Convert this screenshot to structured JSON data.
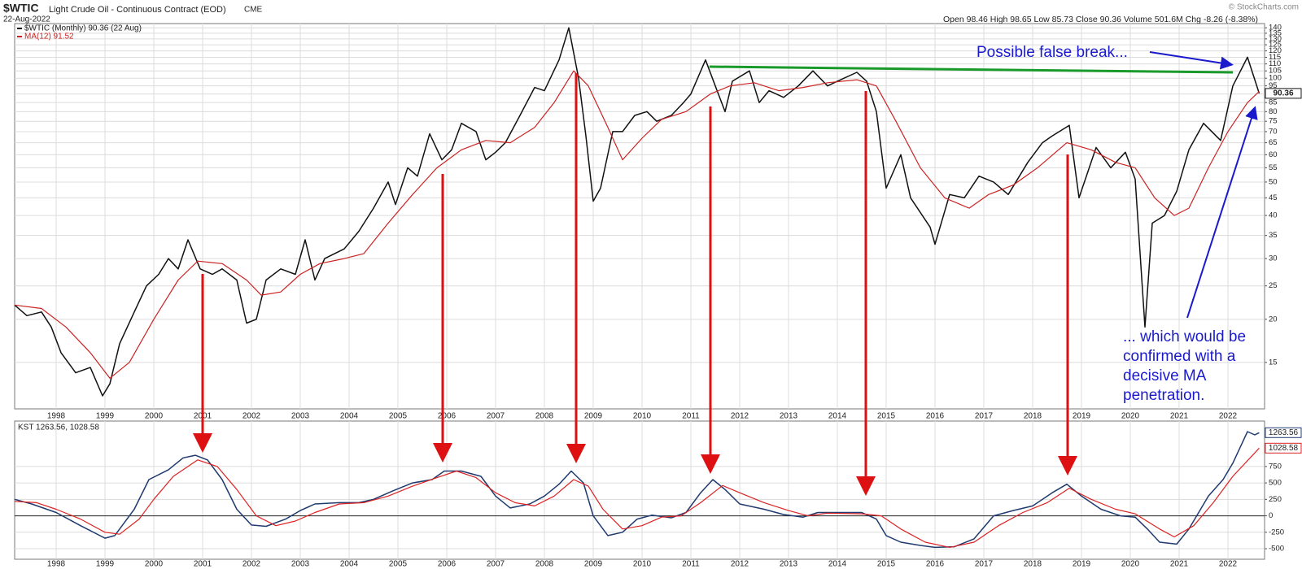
{
  "header": {
    "symbol": "$WTIC",
    "name": "Light Crude Oil - Continuous Contract (EOD)",
    "exchange": "CME",
    "date": "22-Aug-2022",
    "quote": "Open 98.46 High 98.65 Low 85.73 Close 90.36 Volume 501.6M Chg -8.26 (-8.38%)",
    "credit": "© StockCharts.com"
  },
  "chart_data": [
    {
      "type": "line",
      "log_scale": true,
      "grid": true,
      "xlim": [
        1997.15,
        2022.75
      ],
      "xticks": [
        1998,
        1999,
        2000,
        2001,
        2002,
        2003,
        2004,
        2005,
        2006,
        2007,
        2008,
        2009,
        2010,
        2011,
        2012,
        2013,
        2014,
        2015,
        2016,
        2017,
        2018,
        2019,
        2020,
        2021,
        2022
      ],
      "ylim": [
        11,
        144
      ],
      "yticks": [
        15,
        20,
        25,
        30,
        35,
        40,
        45,
        50,
        55,
        60,
        65,
        70,
        75,
        80,
        85,
        90,
        95,
        100,
        105,
        110,
        115,
        120,
        125,
        130,
        135,
        140
      ],
      "series": [
        {
          "name": "$WTIC (Monthly) 90.36 (22 Aug)",
          "color": "#111111",
          "last_value_box": true,
          "x": [
            1997.15,
            1997.4,
            1997.7,
            1997.9,
            1998.1,
            1998.4,
            1998.7,
            1998.95,
            1999.1,
            1999.3,
            1999.6,
            1999.85,
            2000.1,
            2000.3,
            2000.5,
            2000.7,
            2000.95,
            2001.2,
            2001.4,
            2001.7,
            2001.9,
            2002.1,
            2002.3,
            2002.6,
            2002.9,
            2003.1,
            2003.3,
            2003.5,
            2003.9,
            2004.2,
            2004.5,
            2004.8,
            2004.95,
            2005.2,
            2005.4,
            2005.65,
            2005.9,
            2006.1,
            2006.3,
            2006.6,
            2006.8,
            2007.0,
            2007.2,
            2007.5,
            2007.8,
            2008.0,
            2008.3,
            2008.5,
            2008.7,
            2008.85,
            2009.0,
            2009.15,
            2009.4,
            2009.6,
            2009.85,
            2010.1,
            2010.3,
            2010.6,
            2010.85,
            2011.0,
            2011.3,
            2011.5,
            2011.7,
            2011.85,
            2012.2,
            2012.4,
            2012.6,
            2012.9,
            2013.2,
            2013.5,
            2013.8,
            2014.0,
            2014.4,
            2014.6,
            2014.8,
            2015.0,
            2015.3,
            2015.5,
            2015.9,
            2016.0,
            2016.3,
            2016.6,
            2016.9,
            2017.2,
            2017.5,
            2017.9,
            2018.2,
            2018.4,
            2018.75,
            2018.95,
            2019.3,
            2019.6,
            2019.9,
            2020.1,
            2020.3,
            2020.45,
            2020.7,
            2020.95,
            2021.2,
            2021.5,
            2021.85,
            2022.1,
            2022.4,
            2022.64
          ],
          "values": [
            22,
            20.5,
            21,
            19,
            16,
            14,
            14.5,
            12,
            13,
            17,
            21,
            25,
            27,
            30,
            28,
            34,
            28,
            27,
            28,
            26,
            19.5,
            20,
            26,
            28,
            27,
            34,
            26,
            30,
            32,
            36,
            42,
            50,
            43,
            55,
            52,
            69,
            58,
            62,
            74,
            70,
            58,
            61,
            65,
            78,
            94,
            92,
            113,
            140,
            100,
            68,
            44,
            48,
            70,
            70,
            78,
            80,
            75,
            78,
            85,
            90,
            113,
            95,
            80,
            98,
            105,
            85,
            92,
            88,
            95,
            105,
            95,
            98,
            104,
            98,
            80,
            48,
            60,
            45,
            37,
            33,
            46,
            45,
            52,
            50,
            46,
            57,
            65,
            68,
            73,
            45,
            63,
            55,
            61,
            51,
            19,
            38,
            40,
            47,
            62,
            74,
            66,
            95,
            115,
            90.36
          ]
        },
        {
          "name": "MA(12) 91.52",
          "color": "#cc2222",
          "x": [
            1997.15,
            1997.7,
            1998.2,
            1998.7,
            1999.1,
            1999.5,
            2000.0,
            2000.5,
            2000.9,
            2001.4,
            2001.9,
            2002.2,
            2002.6,
            2003.0,
            2003.4,
            2003.9,
            2004.3,
            2004.8,
            2005.3,
            2005.8,
            2006.3,
            2006.8,
            2007.3,
            2007.8,
            2008.2,
            2008.6,
            2008.9,
            2009.3,
            2009.6,
            2010.0,
            2010.4,
            2010.9,
            2011.4,
            2011.8,
            2012.3,
            2012.8,
            2013.3,
            2013.8,
            2014.4,
            2014.8,
            2015.2,
            2015.7,
            2016.2,
            2016.7,
            2017.1,
            2017.6,
            2018.1,
            2018.7,
            2019.2,
            2019.7,
            2020.1,
            2020.5,
            2020.9,
            2021.2,
            2021.6,
            2022.0,
            2022.4,
            2022.64
          ],
          "values": [
            22,
            21.5,
            19,
            16,
            13.5,
            15,
            20,
            26,
            29.5,
            29,
            26,
            23.5,
            24,
            27,
            29,
            30,
            31,
            38,
            46,
            55,
            62,
            66,
            65,
            72,
            85,
            105,
            95,
            72,
            58,
            67,
            76,
            80,
            90,
            95,
            97,
            92,
            94,
            97,
            99,
            95,
            75,
            55,
            45,
            42,
            46,
            49,
            55,
            65,
            62,
            57,
            55,
            45,
            40,
            42,
            55,
            70,
            85,
            91.52
          ]
        }
      ],
      "trendline": {
        "color": "#1a9a2a",
        "x": [
          2011.38,
          2022.1
        ],
        "values": [
          108,
          104
        ]
      },
      "annotations": [
        "Possible false break...",
        "... which would be",
        "confirmed with a",
        "decisive MA",
        "penetration."
      ]
    },
    {
      "type": "line",
      "grid": true,
      "zero_line": true,
      "label": "KST 1263.56, 1028.58",
      "xlim": [
        1997.15,
        2022.75
      ],
      "xticks": [
        1998,
        1999,
        2000,
        2001,
        2002,
        2003,
        2004,
        2005,
        2006,
        2007,
        2008,
        2009,
        2010,
        2011,
        2012,
        2013,
        2014,
        2015,
        2016,
        2017,
        2018,
        2019,
        2020,
        2021,
        2022
      ],
      "ylim": [
        -660,
        1440
      ],
      "yticks": [
        -500,
        -250,
        0,
        250,
        500,
        750
      ],
      "series": [
        {
          "color": "#1f3a6e",
          "last_value_box": true,
          "x": [
            1997.15,
            1997.5,
            1998.0,
            1998.5,
            1999.0,
            1999.2,
            1999.6,
            1999.9,
            2000.3,
            2000.6,
            2000.85,
            2001.1,
            2001.4,
            2001.7,
            2002.0,
            2002.3,
            2002.7,
            2003.0,
            2003.3,
            2003.8,
            2004.2,
            2004.5,
            2004.9,
            2005.3,
            2005.7,
            2005.95,
            2006.3,
            2006.7,
            2007.0,
            2007.3,
            2007.7,
            2008.0,
            2008.3,
            2008.55,
            2008.8,
            2009.0,
            2009.3,
            2009.6,
            2009.9,
            2010.2,
            2010.6,
            2010.9,
            2011.2,
            2011.45,
            2011.7,
            2012.0,
            2012.5,
            2012.9,
            2013.3,
            2013.6,
            2014.0,
            2014.5,
            2014.8,
            2015.0,
            2015.3,
            2015.7,
            2016.0,
            2016.4,
            2016.8,
            2017.2,
            2017.6,
            2018.0,
            2018.4,
            2018.7,
            2019.0,
            2019.4,
            2019.8,
            2020.1,
            2020.35,
            2020.6,
            2020.95,
            2021.2,
            2021.6,
            2021.9,
            2022.1,
            2022.4,
            2022.55,
            2022.64
          ],
          "values": [
            250,
            180,
            50,
            -150,
            -340,
            -300,
            100,
            550,
            700,
            880,
            920,
            850,
            550,
            100,
            -140,
            -160,
            -50,
            80,
            180,
            200,
            200,
            250,
            380,
            500,
            550,
            680,
            680,
            600,
            300,
            120,
            180,
            300,
            480,
            680,
            500,
            0,
            -300,
            -250,
            -50,
            10,
            -30,
            50,
            350,
            550,
            400,
            180,
            100,
            20,
            -20,
            50,
            50,
            50,
            -50,
            -300,
            -400,
            -450,
            -480,
            -470,
            -350,
            0,
            80,
            150,
            350,
            480,
            300,
            100,
            0,
            -20,
            -200,
            -400,
            -430,
            -200,
            300,
            550,
            800,
            1280,
            1230,
            1263.56
          ]
        },
        {
          "color": "#dd2222",
          "last_value_box": true,
          "x": [
            1997.15,
            1997.6,
            1998.0,
            1998.5,
            1999.0,
            1999.3,
            1999.7,
            2000.0,
            2000.4,
            2000.9,
            2001.3,
            2001.7,
            2002.1,
            2002.5,
            2002.9,
            2003.3,
            2003.8,
            2004.3,
            2004.8,
            2005.3,
            2005.8,
            2006.2,
            2006.6,
            2007.0,
            2007.4,
            2007.8,
            2008.2,
            2008.6,
            2008.9,
            2009.2,
            2009.6,
            2010.0,
            2010.4,
            2010.8,
            2011.2,
            2011.65,
            2012.0,
            2012.5,
            2013.0,
            2013.4,
            2013.8,
            2014.5,
            2014.9,
            2015.3,
            2015.8,
            2016.3,
            2016.8,
            2017.3,
            2017.8,
            2018.3,
            2018.75,
            2019.2,
            2019.7,
            2020.1,
            2020.6,
            2020.9,
            2021.3,
            2021.7,
            2022.1,
            2022.64
          ],
          "values": [
            220,
            200,
            100,
            -50,
            -250,
            -280,
            -50,
            250,
            600,
            850,
            750,
            400,
            0,
            -150,
            -80,
            50,
            180,
            200,
            300,
            450,
            580,
            680,
            580,
            350,
            200,
            150,
            300,
            550,
            450,
            100,
            -200,
            -150,
            -20,
            0,
            200,
            460,
            350,
            200,
            80,
            0,
            40,
            30,
            0,
            -200,
            -400,
            -480,
            -400,
            -150,
            50,
            200,
            420,
            250,
            100,
            30,
            -200,
            -320,
            -150,
            200,
            600,
            1028.58
          ]
        }
      ]
    }
  ]
}
